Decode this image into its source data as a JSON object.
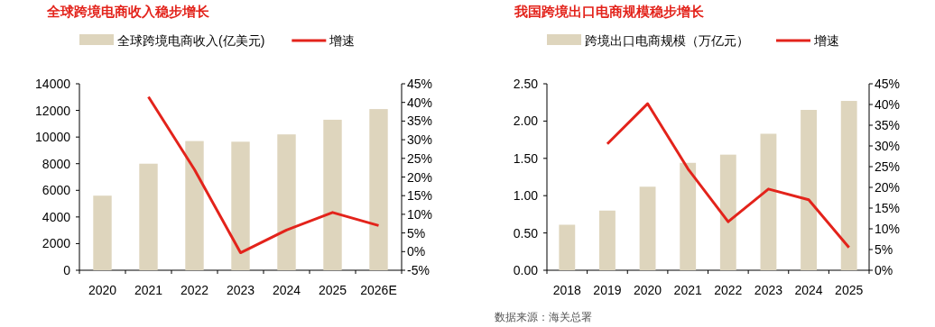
{
  "chart_data": [
    {
      "type": "bar",
      "title": "全球跨境电商收入稳步增长",
      "legend": "top",
      "categories": [
        "2020",
        "2021",
        "2022",
        "2023",
        "2024",
        "2025",
        "2026E"
      ],
      "series": [
        {
          "name": "全球跨境电商收入(亿美元)",
          "color": "#ded5bd",
          "values": [
            5600,
            8000,
            9700,
            9650,
            10200,
            11300,
            12100
          ]
        },
        {
          "name": "增速",
          "type": "line",
          "axis": "y2",
          "color": "#e3231b",
          "values": [
            null,
            41.5,
            22,
            -0.3,
            5.8,
            10.5,
            7
          ]
        }
      ],
      "ylim": [
        0,
        14000
      ],
      "yticks": [
        0,
        2000,
        4000,
        6000,
        8000,
        10000,
        12000,
        14000
      ],
      "y2lim": [
        -5,
        45
      ],
      "y2ticks": [
        {
          "value": -5,
          "label": "-5%"
        },
        {
          "value": 0,
          "label": "0%"
        },
        {
          "value": 5,
          "label": "5%"
        },
        {
          "value": 10,
          "label": "10%"
        },
        {
          "value": 15,
          "label": "15%"
        },
        {
          "value": 20,
          "label": "20%"
        },
        {
          "value": 25,
          "label": "25%"
        },
        {
          "value": 30,
          "label": "30%"
        },
        {
          "value": 35,
          "label": "35%"
        },
        {
          "value": 40,
          "label": "40%"
        },
        {
          "value": 45,
          "label": "45%"
        }
      ]
    },
    {
      "type": "bar",
      "title": "我国跨境出口电商规模稳步增长",
      "legend": "top",
      "categories": [
        "2018",
        "2019",
        "2020",
        "2021",
        "2022",
        "2023",
        "2024",
        "2025"
      ],
      "series": [
        {
          "name": "跨境出口电商规模（万亿元）",
          "color": "#ded5bd",
          "values": [
            0.61,
            0.8,
            1.12,
            1.44,
            1.55,
            1.83,
            2.15,
            2.27
          ]
        },
        {
          "name": "增速",
          "type": "line",
          "axis": "y2",
          "color": "#e3231b",
          "values": [
            null,
            30.5,
            40.2,
            24.5,
            11.7,
            19.6,
            17,
            5.5
          ]
        }
      ],
      "ylim": [
        0,
        2.5
      ],
      "yticks": [
        {
          "value": 0,
          "label": "0.00"
        },
        {
          "value": 0.5,
          "label": "0.50"
        },
        {
          "value": 1,
          "label": "1.00"
        },
        {
          "value": 1.5,
          "label": "1.50"
        },
        {
          "value": 2,
          "label": "2.00"
        },
        {
          "value": 2.5,
          "label": "2.50"
        }
      ],
      "y2lim": [
        0,
        45
      ],
      "y2ticks": [
        {
          "value": 0,
          "label": "0%"
        },
        {
          "value": 5,
          "label": "5%"
        },
        {
          "value": 10,
          "label": "10%"
        },
        {
          "value": 15,
          "label": "15%"
        },
        {
          "value": 20,
          "label": "20%"
        },
        {
          "value": 25,
          "label": "25%"
        },
        {
          "value": 30,
          "label": "30%"
        },
        {
          "value": 35,
          "label": "35%"
        },
        {
          "value": 40,
          "label": "40%"
        },
        {
          "value": 45,
          "label": "45%"
        }
      ],
      "annotations": [
        "数据来源：海关总署"
      ]
    }
  ]
}
